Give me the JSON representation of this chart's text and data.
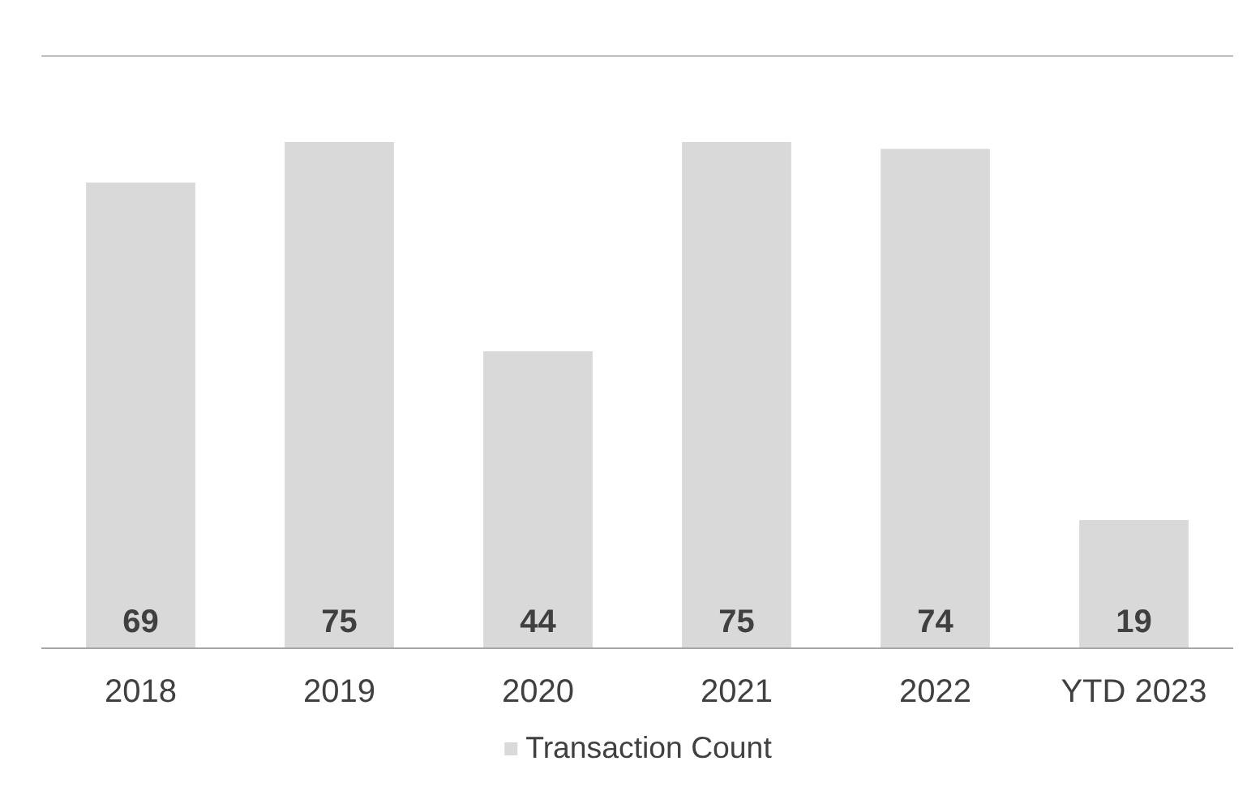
{
  "chart_data": {
    "type": "bar",
    "categories": [
      "2018",
      "2019",
      "2020",
      "2021",
      "2022",
      "YTD 2023"
    ],
    "series": [
      {
        "name": "Transaction Count",
        "color": "#d9d9d9",
        "values": [
          69,
          75,
          44,
          75,
          74,
          19
        ]
      }
    ],
    "data_labels": true,
    "legend": "bottom"
  }
}
